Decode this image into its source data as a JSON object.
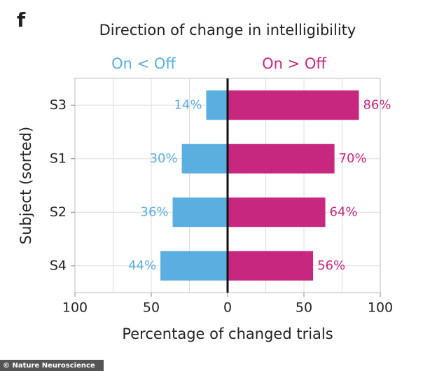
{
  "panel_label": "f",
  "footer": "© Nature Neuroscience",
  "chart_data": {
    "type": "diverging_bar",
    "title": "Direction of change in intelligibility",
    "x_label": "Percentage of changed trials",
    "y_label": "Subject (sorted)",
    "categories": [
      "S3",
      "S1",
      "S2",
      "S4"
    ],
    "series": [
      {
        "name": "On < Off",
        "color": "#5aaee0",
        "values": [
          -14,
          -30,
          -36,
          -44
        ],
        "value_labels": [
          "14%",
          "30%",
          "36%",
          "44%"
        ]
      },
      {
        "name": "On > Off",
        "color": "#c8277f",
        "values": [
          86,
          70,
          64,
          56
        ],
        "value_labels": [
          "86%",
          "70%",
          "64%",
          "56%"
        ]
      }
    ],
    "xlim": [
      -100,
      100
    ],
    "xticks": [
      {
        "value": -100,
        "label": "100"
      },
      {
        "value": -50,
        "label": "50"
      },
      0,
      50,
      100
    ],
    "xgrid": [
      -75,
      -50,
      -25,
      25,
      50,
      75
    ],
    "grid": true
  }
}
